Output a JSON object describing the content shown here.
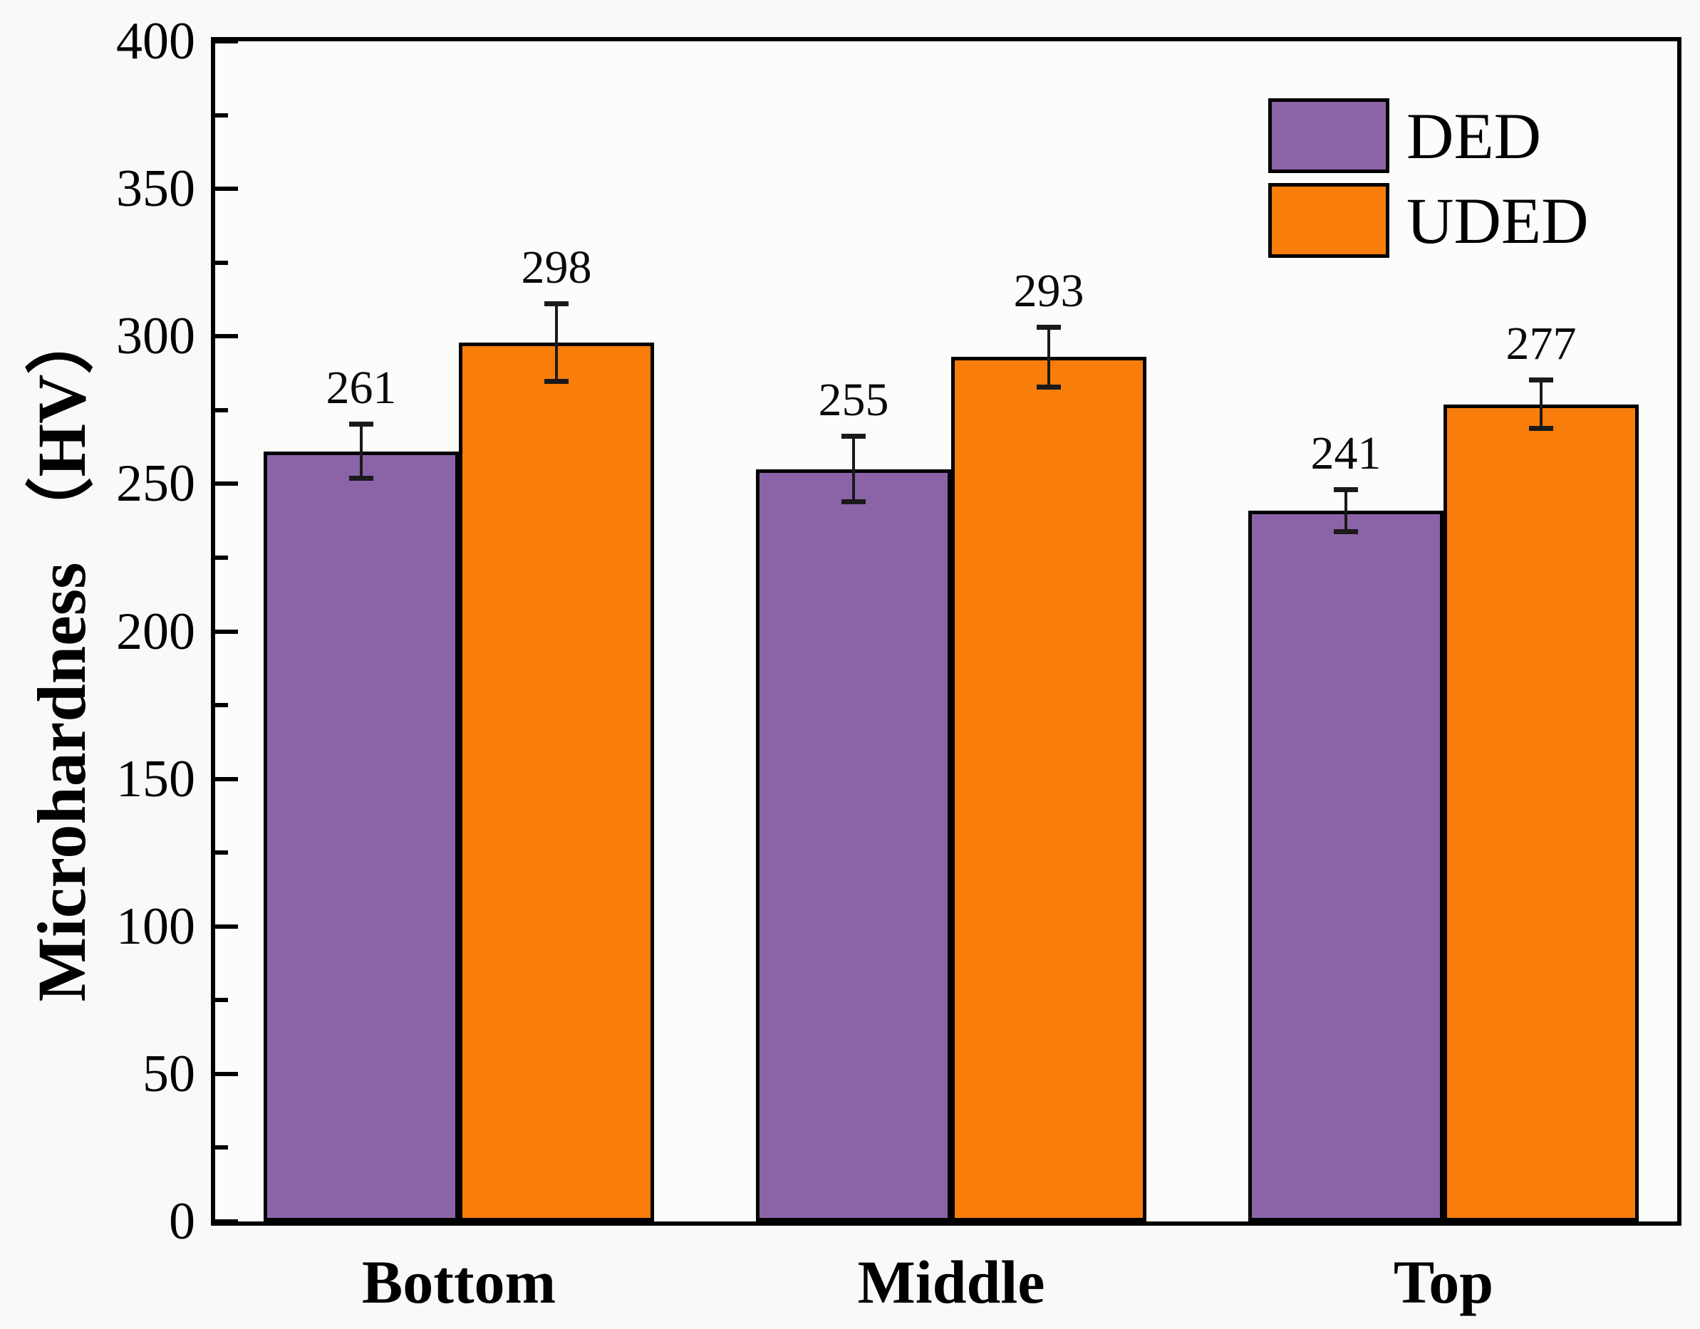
{
  "chart_data": {
    "type": "bar",
    "title": "",
    "categories": [
      "Bottom",
      "Middle",
      "Top"
    ],
    "series": [
      {
        "name": "DED",
        "color": "#8B64A8",
        "values": [
          261,
          255,
          241
        ],
        "errors": [
          10,
          12,
          8
        ]
      },
      {
        "name": "UDED",
        "color": "#F87D0B",
        "values": [
          298,
          293,
          277
        ],
        "errors": [
          14,
          11,
          9
        ]
      }
    ],
    "xlabel": "",
    "ylabel": "Microhardness （HV）",
    "ylim": [
      0,
      400
    ],
    "ytick_step": 50,
    "yminor_step": 25,
    "ytick_labels": [
      "0",
      "50",
      "100",
      "150",
      "200",
      "250",
      "300",
      "350",
      "400"
    ],
    "bar_value_labels": [
      "261",
      "298",
      "255",
      "293",
      "241",
      "277"
    ],
    "grid": false,
    "legend_position": "top-right",
    "error_bars": true,
    "colors": {
      "bar_border": "#000000",
      "axis": "#000000",
      "error_bar": "#1a1a1a",
      "background": "#f8f9f8"
    }
  }
}
